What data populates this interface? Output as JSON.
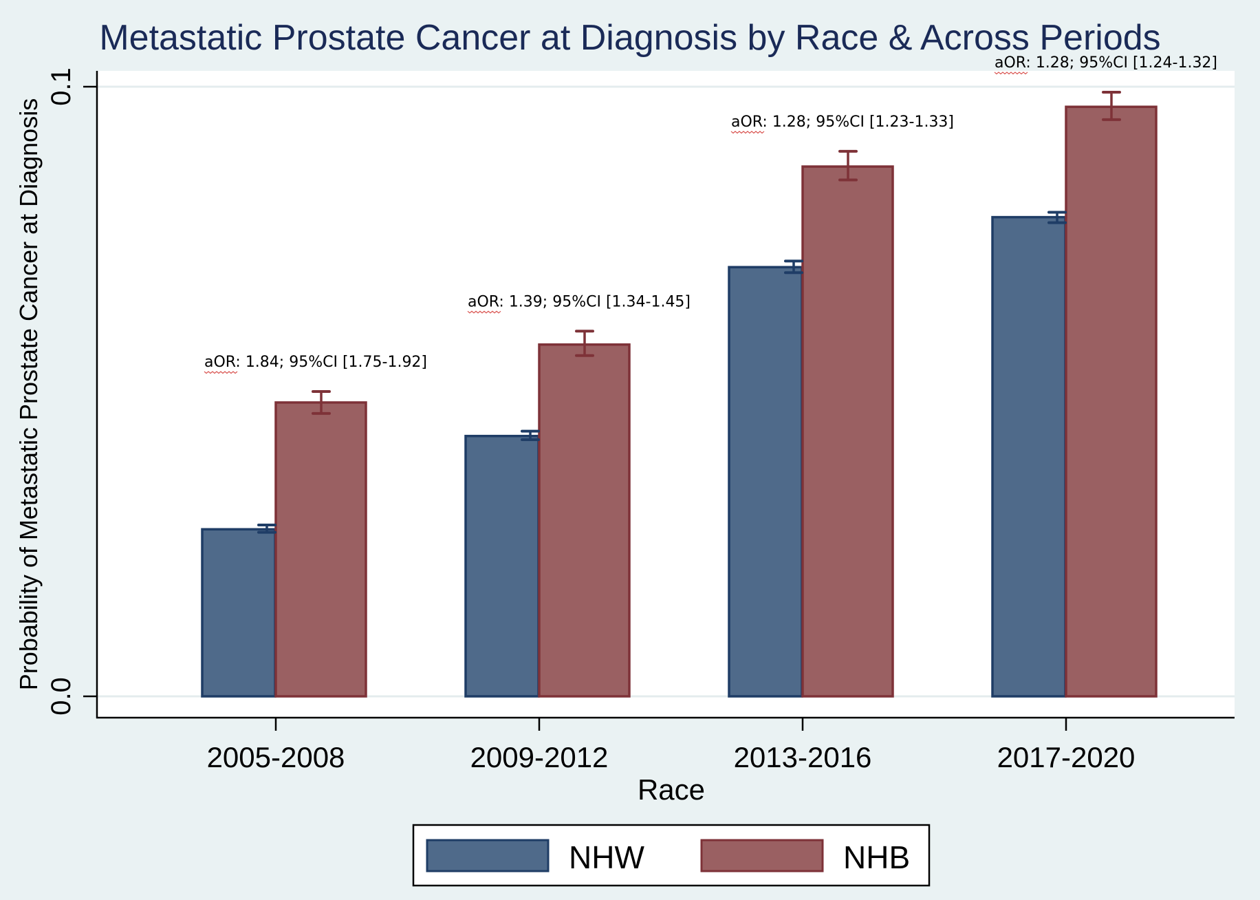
{
  "chart_data": {
    "type": "bar",
    "title": "Metastatic Prostate Cancer at Diagnosis by Race & Across Periods",
    "xlabel": "Race",
    "ylabel": "Probability of Metastatic Prostate Cancer at Diagnosis",
    "ylim": [
      0,
      0.1
    ],
    "yticks": [
      0.0,
      0.1
    ],
    "ytick_labels": [
      "0.0",
      "0.1"
    ],
    "grid": true,
    "categories": [
      "2005-2008",
      "2009-2012",
      "2013-2016",
      "2017-2020"
    ],
    "series": [
      {
        "name": "NHW",
        "color": "#4f6a8a",
        "edge_color": "#1f3d66",
        "values": [
          0.0274,
          0.0427,
          0.0704,
          0.0786
        ],
        "ci_low": [
          0.0269,
          0.0421,
          0.0695,
          0.0777
        ],
        "ci_high": [
          0.0281,
          0.0435,
          0.0714,
          0.0794
        ]
      },
      {
        "name": "NHB",
        "color": "#9a6062",
        "edge_color": "#7e3238",
        "values": [
          0.0482,
          0.0577,
          0.0869,
          0.0967
        ],
        "ci_low": [
          0.0464,
          0.0559,
          0.0847,
          0.0946
        ],
        "ci_high": [
          0.05,
          0.0599,
          0.0894,
          0.0991
        ]
      }
    ],
    "annotations": [
      {
        "category": "2005-2008",
        "text": "aOR: 1.84; 95%CI [1.75-1.92]"
      },
      {
        "category": "2009-2012",
        "text": "aOR: 1.39; 95%CI [1.34-1.45]"
      },
      {
        "category": "2013-2016",
        "text": "aOR: 1.28; 95%CI [1.23-1.33]"
      },
      {
        "category": "2017-2020",
        "text": "aOR: 1.28; 95%CI [1.24-1.32]"
      }
    ],
    "legend": {
      "position": "bottom",
      "entries": [
        "NHW",
        "NHB"
      ]
    }
  },
  "colors": {
    "background": "#eaf2f3",
    "plot_background": "#ffffff",
    "title": "#1a2a57",
    "gridline": "#e6eeef"
  }
}
